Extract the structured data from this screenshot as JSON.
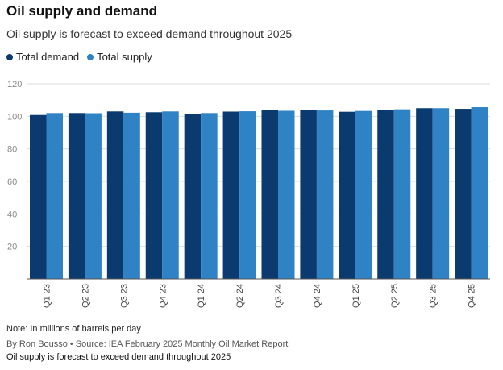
{
  "header": {
    "title": "Oil supply and demand",
    "subtitle": "Oil supply is forecast to exceed demand throughout 2025"
  },
  "legend": {
    "items": [
      {
        "label": "Total demand",
        "color": "#0b3a6e"
      },
      {
        "label": "Total supply",
        "color": "#2f83c4"
      }
    ]
  },
  "chart_data": {
    "type": "bar",
    "title": "Oil supply and demand",
    "subtitle": "Oil supply is forecast to exceed demand throughout 2025",
    "xlabel": "",
    "ylabel": "",
    "ylim": [
      0,
      120
    ],
    "yticks": [
      20,
      40,
      60,
      80,
      100,
      120
    ],
    "grid": true,
    "legend_position": "top-left",
    "categories": [
      "Q1 23",
      "Q2 23",
      "Q3 23",
      "Q4 23",
      "Q1 24",
      "Q2 24",
      "Q3 24",
      "Q4 24",
      "Q1 25",
      "Q2 25",
      "Q3 25",
      "Q4 25"
    ],
    "series": [
      {
        "name": "Total demand",
        "color": "#0b3a6e",
        "values": [
          100.8,
          102.0,
          103.0,
          102.5,
          101.5,
          102.9,
          103.8,
          104.0,
          102.8,
          104.0,
          105.0,
          104.6
        ]
      },
      {
        "name": "Total supply",
        "color": "#2f83c4",
        "values": [
          102.0,
          101.9,
          102.2,
          103.0,
          102.0,
          103.1,
          103.4,
          103.6,
          103.3,
          104.3,
          105.0,
          105.6
        ]
      }
    ]
  },
  "footer": {
    "note": "Note: In millions of barrels per day",
    "byline": "By Ron Bousso • Source: IEA February 2025 Monthly Oil Market Report",
    "caption": "Oil supply is forecast to exceed demand throughout 2025"
  }
}
